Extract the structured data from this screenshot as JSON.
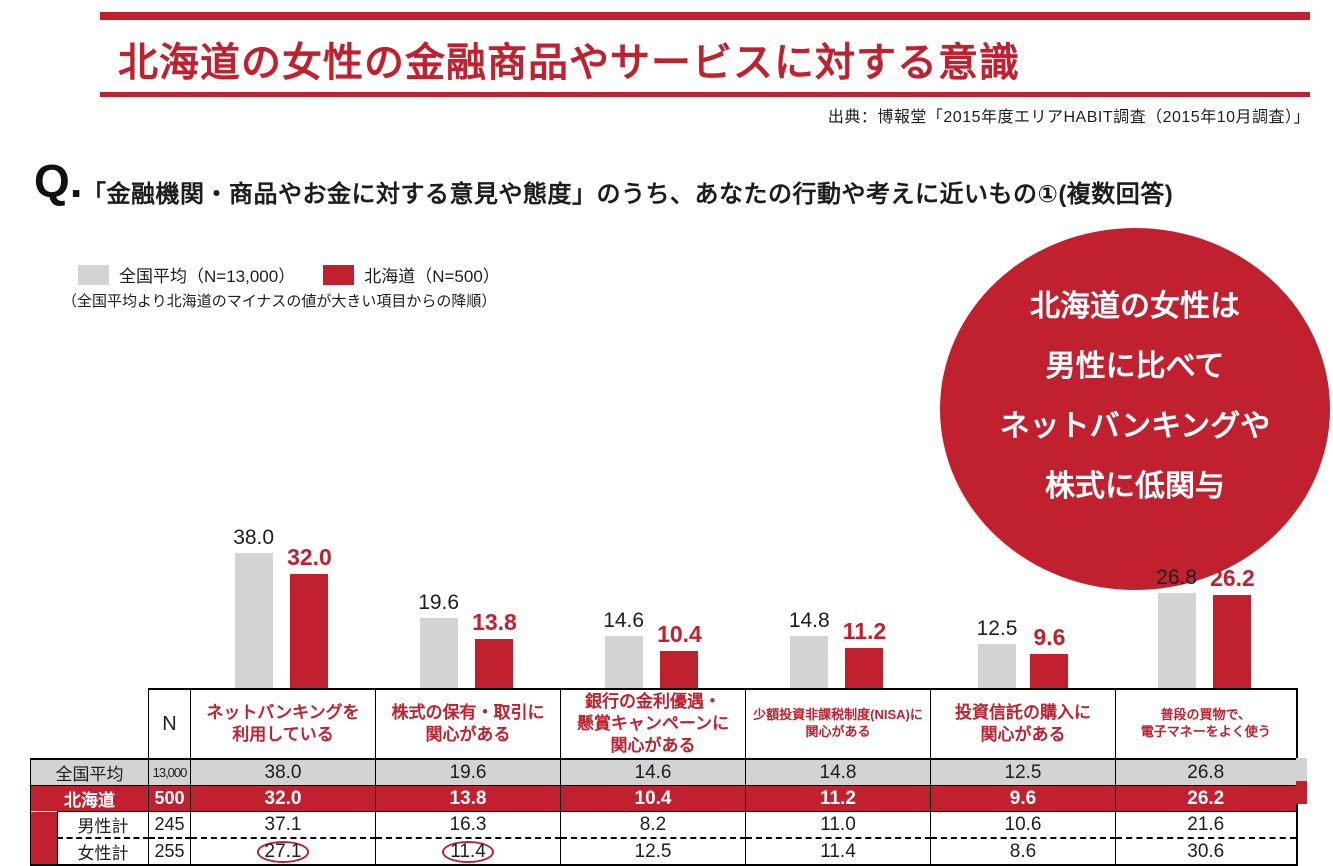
{
  "colors": {
    "red": "#C1202E",
    "gray": "#D1D3D4",
    "black": "#1d1d1f"
  },
  "header": {
    "title": "北海道の女性の金融商品やサービスに対する意識",
    "source": "出典：博報堂「2015年度エリアHABIT調査（2015年10月調査）」"
  },
  "question": {
    "prefix": "Q.",
    "text": "「金融機関・商品やお金に対する意見や態度」のうち、あなたの行動や考えに近いもの①(複数回答)"
  },
  "legend": {
    "series": [
      {
        "label": "全国平均（N=13,000）",
        "color": "#D1D3D4"
      },
      {
        "label": "北海道（N=500）",
        "color": "#C1202E"
      }
    ],
    "note": "（全国平均より北海道のマイナスの値が大きい項目からの降順）"
  },
  "callout": {
    "lines": [
      "北海道の女性は",
      "男性に比べて",
      "ネットバンキングや",
      "株式に低関与"
    ]
  },
  "chart_data": {
    "type": "bar",
    "categories": [
      "ネットバンキングを利用している",
      "株式の保有・取引に関心がある",
      "銀行の金利優遇・懸賞キャンペーンに関心がある",
      "少額投資非課税制度（NISA）に関心がある",
      "投資信託の購入に関心がある",
      "普段の買物で、電子マネーをよく使う"
    ],
    "series": [
      {
        "name": "全国平均",
        "key": "national-average",
        "n": "13,000",
        "color": "#D1D3D4",
        "values": [
          38.0,
          19.6,
          14.6,
          14.8,
          12.5,
          26.8
        ]
      },
      {
        "name": "北海道",
        "key": "hokkaido",
        "n": "500",
        "color": "#C1202E",
        "values": [
          32.0,
          13.8,
          10.4,
          11.2,
          9.6,
          26.2
        ]
      }
    ],
    "ylim": [
      0,
      40
    ],
    "value_labels": true,
    "grid": false,
    "legend_position": "top-left"
  },
  "table": {
    "n_header": "N",
    "col_headers": [
      {
        "lines": [
          "ネットバンキングを",
          "利用している"
        ],
        "small": false
      },
      {
        "lines": [
          "株式の保有・取引に",
          "関心がある"
        ],
        "small": false
      },
      {
        "lines": [
          "銀行の金利優遇・",
          "懸賞キャンペーンに",
          "関心がある"
        ],
        "small": false
      },
      {
        "lines": [
          "少額投資非課税制度(NISA)に",
          "関心がある"
        ],
        "small": true
      },
      {
        "lines": [
          "投資信託の購入に",
          "関心がある"
        ],
        "small": false
      },
      {
        "lines": [
          "普段の買物で、",
          "電子マネーをよく使う"
        ],
        "small": true
      }
    ],
    "rows": [
      {
        "label": "全国平均",
        "n": "13,000",
        "values": [
          38.0,
          19.6,
          14.6,
          14.8,
          12.5,
          26.8
        ],
        "style": "gray",
        "circled": []
      },
      {
        "label": "北海道",
        "n": "500",
        "values": [
          32.0,
          13.8,
          10.4,
          11.2,
          9.6,
          26.2
        ],
        "style": "red",
        "circled": []
      },
      {
        "label": "男性計",
        "n": "245",
        "values": [
          37.1,
          16.3,
          8.2,
          11.0,
          10.6,
          21.6
        ],
        "style": "plain",
        "circled": []
      },
      {
        "label": "女性計",
        "n": "255",
        "values": [
          27.1,
          11.4,
          12.5,
          11.4,
          8.6,
          30.6
        ],
        "style": "plain",
        "circled": [
          0,
          1
        ]
      }
    ]
  }
}
